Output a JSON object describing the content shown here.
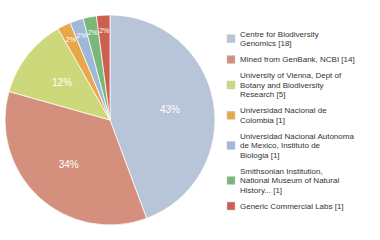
{
  "chart_data": {
    "type": "pie",
    "categories": [
      "Centre for Biodiversity\nGenomics [18]",
      "Mined from GenBank, NCBI [14]",
      "University of Vienna, Dept of\nBotany and Biodiversity\nResearch [5]",
      "Universidad Nacional de\nColombia [1]",
      "Universidad Nacional Autonoma\nde Mexico, Instituto de\nBiologia [1]",
      "Smithsonian Institution,\nNational Museum of Natural\nHistory... [1]",
      "Generic Commercial Labs [1]"
    ],
    "values": [
      43,
      34,
      12,
      2,
      2,
      2,
      2
    ],
    "value_labels": [
      "43%",
      "34%",
      "12%",
      "2%",
      "2%",
      "2%",
      "2%"
    ],
    "colors": [
      "#b8c4d8",
      "#d4907c",
      "#ccd87a",
      "#e8a84a",
      "#a0b8d8",
      "#7ab87a",
      "#cc6050"
    ],
    "data_labels": true,
    "legend": "right"
  }
}
